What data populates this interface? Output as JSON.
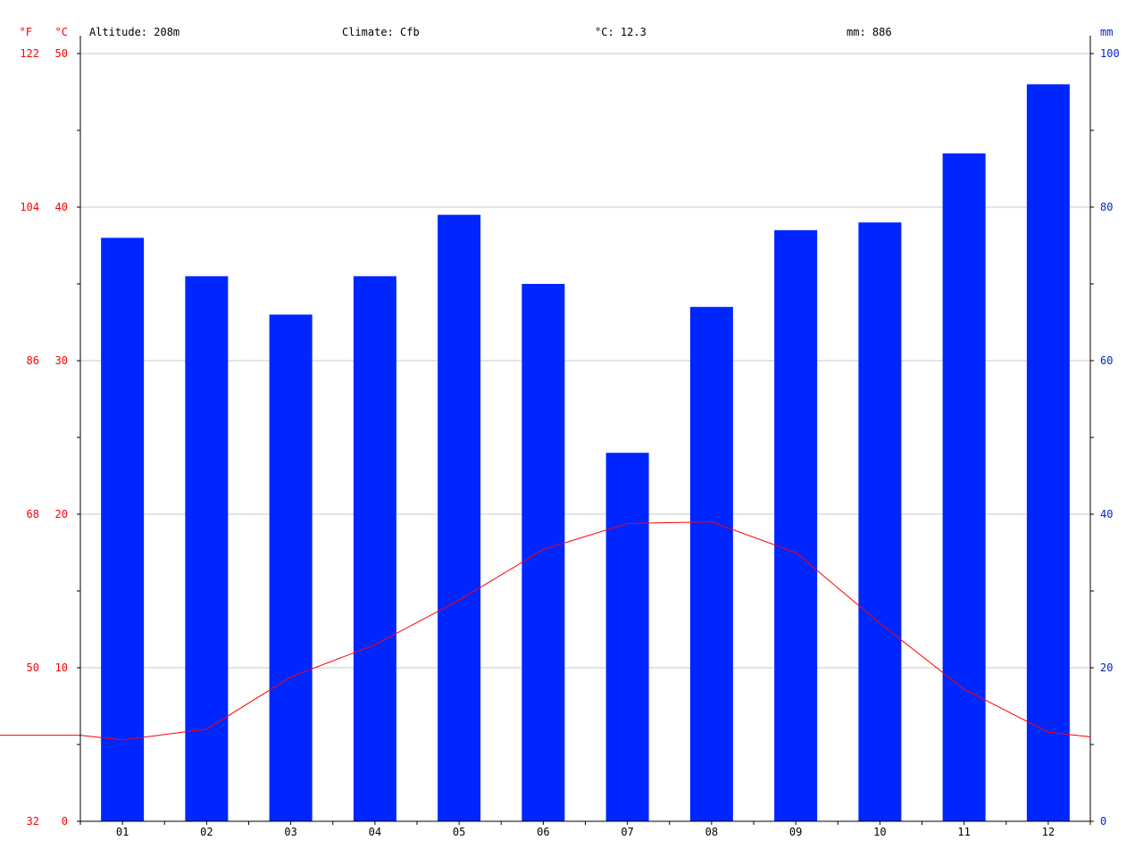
{
  "header": {
    "altitude": "Altitude: 208m",
    "climate": "Climate: Cfb",
    "avg_temp": "°C: 12.3",
    "precip_total": "mm: 886"
  },
  "colors": {
    "temperature": "#ff0000",
    "precipitation_bars": "#0026ff",
    "precipitation_axis": "#0026cc",
    "grid": "#c8c8c8",
    "axis": "#000000"
  },
  "chart_data": {
    "type": "bar",
    "categories": [
      "01",
      "02",
      "03",
      "04",
      "05",
      "06",
      "07",
      "08",
      "09",
      "10",
      "11",
      "12"
    ],
    "series": [
      {
        "type": "bar",
        "axis": "right",
        "values": [
          76,
          71,
          66,
          71,
          79,
          70,
          48,
          67,
          77,
          78,
          87,
          96
        ]
      },
      {
        "type": "line",
        "axis": "left",
        "values": [
          5.3,
          6.0,
          9.4,
          11.5,
          14.4,
          17.7,
          19.4,
          19.5,
          17.5,
          12.9,
          8.6,
          5.8
        ]
      }
    ],
    "line_edge_values": {
      "left": 5.6,
      "right": 5.5
    },
    "left_axis": {
      "unit_c": "°C",
      "unit_f": "°F",
      "ylim": [
        0,
        50
      ],
      "ticks_c": [
        "0",
        "10",
        "20",
        "30",
        "40",
        "50"
      ],
      "ticks_f": [
        "32",
        "50",
        "68",
        "86",
        "104",
        "122"
      ]
    },
    "right_axis": {
      "unit": "mm",
      "ylim": [
        0,
        100
      ],
      "ticks": [
        "0",
        "20",
        "40",
        "60",
        "80",
        "100"
      ]
    },
    "grid": true
  }
}
